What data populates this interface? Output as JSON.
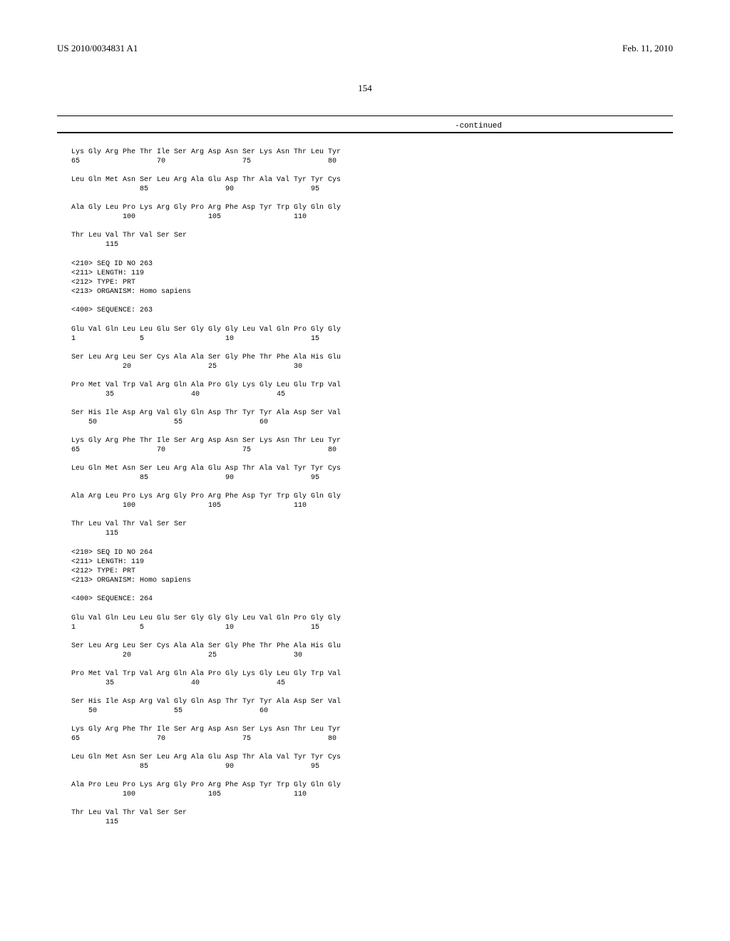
{
  "header": {
    "pub_number": "US 2010/0034831 A1",
    "pub_date": "Feb. 11, 2010"
  },
  "page_number": "154",
  "continued_label": "-continued",
  "block_top": {
    "lines": [
      "Lys Gly Arg Phe Thr Ile Ser Arg Asp Asn Ser Lys Asn Thr Leu Tyr",
      "65                  70                  75                  80",
      "",
      "Leu Gln Met Asn Ser Leu Arg Ala Glu Asp Thr Ala Val Tyr Tyr Cys",
      "                85                  90                  95",
      "",
      "Ala Gly Leu Pro Lys Arg Gly Pro Arg Phe Asp Tyr Trp Gly Gln Gly",
      "            100                 105                 110",
      "",
      "Thr Leu Val Thr Val Ser Ser",
      "        115"
    ]
  },
  "seq263": {
    "meta": [
      "<210> SEQ ID NO 263",
      "<211> LENGTH: 119",
      "<212> TYPE: PRT",
      "<213> ORGANISM: Homo sapiens",
      "",
      "<400> SEQUENCE: 263"
    ],
    "lines": [
      "Glu Val Gln Leu Leu Glu Ser Gly Gly Gly Leu Val Gln Pro Gly Gly",
      "1               5                   10                  15",
      "",
      "Ser Leu Arg Leu Ser Cys Ala Ala Ser Gly Phe Thr Phe Ala His Glu",
      "            20                  25                  30",
      "",
      "Pro Met Val Trp Val Arg Gln Ala Pro Gly Lys Gly Leu Glu Trp Val",
      "        35                  40                  45",
      "",
      "Ser His Ile Asp Arg Val Gly Gln Asp Thr Tyr Tyr Ala Asp Ser Val",
      "    50                  55                  60",
      "",
      "Lys Gly Arg Phe Thr Ile Ser Arg Asp Asn Ser Lys Asn Thr Leu Tyr",
      "65                  70                  75                  80",
      "",
      "Leu Gln Met Asn Ser Leu Arg Ala Glu Asp Thr Ala Val Tyr Tyr Cys",
      "                85                  90                  95",
      "",
      "Ala Arg Leu Pro Lys Arg Gly Pro Arg Phe Asp Tyr Trp Gly Gln Gly",
      "            100                 105                 110",
      "",
      "Thr Leu Val Thr Val Ser Ser",
      "        115"
    ]
  },
  "seq264": {
    "meta": [
      "<210> SEQ ID NO 264",
      "<211> LENGTH: 119",
      "<212> TYPE: PRT",
      "<213> ORGANISM: Homo sapiens",
      "",
      "<400> SEQUENCE: 264"
    ],
    "lines": [
      "Glu Val Gln Leu Leu Glu Ser Gly Gly Gly Leu Val Gln Pro Gly Gly",
      "1               5                   10                  15",
      "",
      "Ser Leu Arg Leu Ser Cys Ala Ala Ser Gly Phe Thr Phe Ala His Glu",
      "            20                  25                  30",
      "",
      "Pro Met Val Trp Val Arg Gln Ala Pro Gly Lys Gly Leu Gly Trp Val",
      "        35                  40                  45",
      "",
      "Ser His Ile Asp Arg Val Gly Gln Asp Thr Tyr Tyr Ala Asp Ser Val",
      "    50                  55                  60",
      "",
      "Lys Gly Arg Phe Thr Ile Ser Arg Asp Asn Ser Lys Asn Thr Leu Tyr",
      "65                  70                  75                  80",
      "",
      "Leu Gln Met Asn Ser Leu Arg Ala Glu Asp Thr Ala Val Tyr Tyr Cys",
      "                85                  90                  95",
      "",
      "Ala Pro Leu Pro Lys Arg Gly Pro Arg Phe Asp Tyr Trp Gly Gln Gly",
      "            100                 105                 110",
      "",
      "Thr Leu Val Thr Val Ser Ser",
      "        115"
    ]
  }
}
